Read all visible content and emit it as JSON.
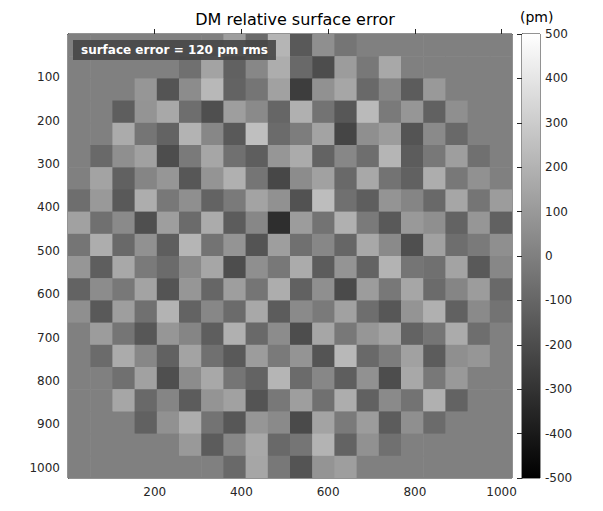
{
  "chart_data": {
    "type": "heatmap",
    "title": "DM relative surface error",
    "annotation": "surface error = 120 pm rms",
    "xlim": [
      0,
      1024
    ],
    "ylim": [
      0,
      1024
    ],
    "xticks": [
      200,
      400,
      600,
      800,
      1000
    ],
    "yticks": [
      100,
      200,
      300,
      400,
      500,
      600,
      700,
      800,
      900,
      1000
    ],
    "x_edges": [
      0,
      51.2,
      102.4,
      153.6,
      204.8,
      256,
      307.2,
      358.4,
      409.6,
      460.8,
      512,
      563.2,
      614.4,
      665.6,
      716.8,
      768,
      819.2,
      870.4,
      921.6,
      972.8,
      1024
    ],
    "y_edges": [
      0,
      51.2,
      102.4,
      153.6,
      204.8,
      256,
      307.2,
      358.4,
      409.6,
      460.8,
      512,
      563.2,
      614.4,
      665.6,
      716.8,
      768,
      819.2,
      870.4,
      921.6,
      972.8,
      1024
    ],
    "cells": [
      [
        0,
        0,
        0,
        0,
        0,
        0,
        0,
        120,
        -80,
        210,
        -150,
        60,
        -40,
        0,
        0,
        0,
        0,
        0,
        0,
        0
      ],
      [
        0,
        0,
        0,
        0,
        0,
        -60,
        140,
        -120,
        30,
        180,
        -90,
        -200,
        110,
        -30,
        160,
        0,
        0,
        0,
        0,
        0
      ],
      [
        0,
        0,
        0,
        90,
        -170,
        50,
        220,
        -110,
        -40,
        130,
        -260,
        70,
        150,
        -90,
        20,
        -140,
        100,
        0,
        0,
        0
      ],
      [
        0,
        0,
        -130,
        80,
        160,
        -70,
        -190,
        120,
        40,
        -100,
        190,
        -50,
        -160,
        230,
        -20,
        90,
        -120,
        60,
        0,
        0
      ],
      [
        0,
        0,
        170,
        -40,
        -110,
        200,
        30,
        -150,
        250,
        -80,
        -10,
        140,
        -230,
        60,
        110,
        -170,
        40,
        -90,
        0,
        0
      ],
      [
        0,
        -90,
        60,
        130,
        -200,
        -20,
        150,
        -60,
        -130,
        90,
        170,
        -110,
        30,
        -70,
        210,
        -140,
        -30,
        120,
        -60,
        0
      ],
      [
        0,
        140,
        -120,
        20,
        90,
        -160,
        80,
        190,
        -40,
        -220,
        50,
        130,
        -90,
        160,
        -50,
        -120,
        180,
        -30,
        70,
        0
      ],
      [
        -70,
        100,
        -150,
        180,
        -30,
        60,
        -110,
        -20,
        140,
        70,
        -180,
        240,
        -60,
        -130,
        80,
        20,
        -90,
        150,
        -40,
        110
      ],
      [
        130,
        -60,
        40,
        -190,
        120,
        -80,
        170,
        -140,
        30,
        -320,
        110,
        -50,
        190,
        -20,
        -150,
        100,
        60,
        -110,
        90,
        -120
      ],
      [
        -40,
        180,
        -90,
        70,
        -130,
        210,
        -50,
        80,
        -170,
        120,
        -60,
        30,
        -100,
        160,
        40,
        -190,
        130,
        -70,
        -20,
        60
      ],
      [
        90,
        -130,
        160,
        -20,
        -80,
        40,
        150,
        -200,
        60,
        -30,
        170,
        -140,
        80,
        -110,
        200,
        -40,
        -60,
        140,
        -150,
        30
      ],
      [
        -110,
        50,
        -30,
        140,
        -170,
        90,
        -100,
        120,
        -40,
        180,
        -120,
        60,
        -210,
        110,
        -30,
        150,
        -80,
        20,
        110,
        -90
      ],
      [
        60,
        -150,
        120,
        -60,
        200,
        -110,
        30,
        -80,
        160,
        -140,
        40,
        -20,
        130,
        -70,
        -160,
        80,
        190,
        -120,
        40,
        -50
      ],
      [
        0,
        110,
        -40,
        -160,
        90,
        20,
        -130,
        190,
        -90,
        50,
        -200,
        150,
        -30,
        90,
        140,
        -110,
        -40,
        170,
        -70,
        0
      ],
      [
        0,
        -80,
        170,
        30,
        -120,
        140,
        -60,
        -150,
        110,
        -20,
        80,
        -170,
        220,
        -90,
        -10,
        130,
        -140,
        60,
        90,
        0
      ],
      [
        0,
        0,
        -60,
        130,
        -190,
        50,
        160,
        -40,
        -110,
        210,
        -80,
        30,
        -130,
        70,
        -200,
        160,
        -30,
        100,
        0,
        0
      ],
      [
        0,
        0,
        150,
        -90,
        20,
        -140,
        80,
        130,
        -170,
        -30,
        120,
        -60,
        180,
        -120,
        40,
        -50,
        190,
        -110,
        0,
        0
      ],
      [
        0,
        0,
        0,
        -120,
        70,
        180,
        -50,
        -160,
        90,
        40,
        -210,
        140,
        -20,
        110,
        -140,
        60,
        -80,
        0,
        0,
        0
      ],
      [
        0,
        0,
        0,
        0,
        0,
        100,
        -140,
        30,
        160,
        -90,
        -40,
        200,
        -110,
        70,
        -60,
        0,
        0,
        0,
        0,
        0
      ],
      [
        0,
        0,
        0,
        0,
        0,
        0,
        0,
        -90,
        150,
        -30,
        -170,
        80,
        120,
        0,
        0,
        0,
        0,
        0,
        0,
        0
      ]
    ],
    "colorbar": {
      "label": "(pm)",
      "range": [
        -500,
        500
      ],
      "ticks": [
        -500,
        -400,
        -300,
        -200,
        -100,
        0,
        100,
        200,
        300,
        400,
        500
      ]
    }
  }
}
